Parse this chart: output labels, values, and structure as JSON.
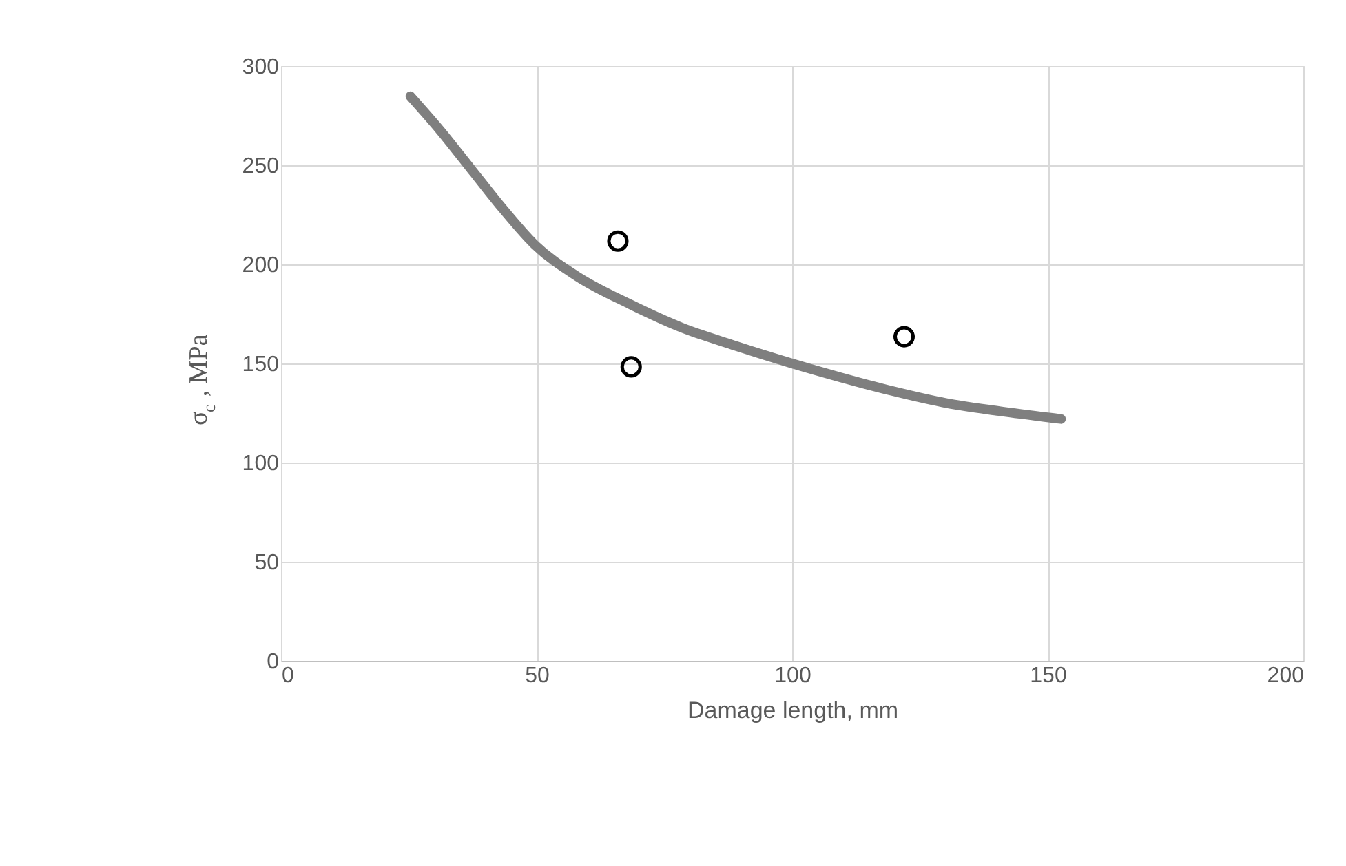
{
  "chart_data": {
    "type": "scatter",
    "xlabel": "Damage length, mm",
    "ylabel": "σ$_{c}$ , MPa",
    "xlim": [
      0,
      200
    ],
    "xticks": [
      0,
      50,
      100,
      150,
      200
    ],
    "ylim": [
      0,
      300
    ],
    "yticks": [
      0,
      50,
      100,
      150,
      200,
      250,
      300
    ],
    "grid": true,
    "series": [
      {
        "type": "line",
        "color": "#7f7f7f",
        "marker": "none",
        "line_style": "solid",
        "x": [
          25.3,
          31,
          37.2,
          43.4,
          49.6,
          57.9,
          68.2,
          78.5,
          88.8,
          100,
          109.5,
          119.8,
          130.2,
          140.5,
          152.6
        ],
        "values": [
          284.8,
          268,
          248,
          228,
          210,
          194,
          180,
          168,
          159,
          150,
          143,
          136,
          130,
          126,
          122
        ]
      },
      {
        "color": "#000000",
        "marker": "circle",
        "x": [
          65.9,
          68.5,
          121.9
        ],
        "values": [
          211.7,
          148.3,
          163.5
        ]
      }
    ]
  }
}
